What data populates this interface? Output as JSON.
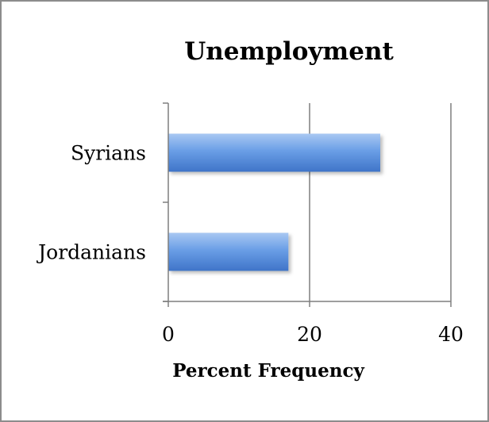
{
  "chart_data": {
    "type": "bar",
    "orientation": "horizontal",
    "title": "Unemployment",
    "xlabel": "Percent Frequency",
    "ylabel": "",
    "categories": [
      "Jordanians",
      "Syrians"
    ],
    "values": [
      17,
      30
    ],
    "xlim": [
      0,
      40
    ],
    "x_ticks": [
      0,
      20,
      40
    ],
    "grid": "vertical major gridlines",
    "legend": "none",
    "colors": {
      "bar_light": "#a9c8f2",
      "bar_mid": "#6a9ee6",
      "bar_dark": "#3f74c8",
      "axis": "#7f7f7f",
      "frame": "#8c8c8c"
    }
  }
}
